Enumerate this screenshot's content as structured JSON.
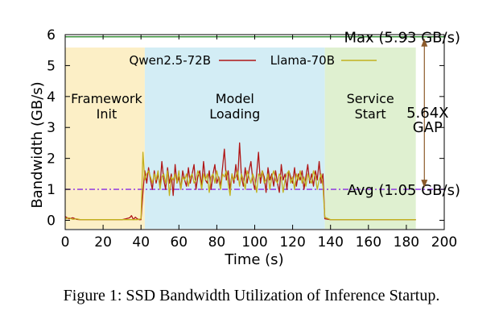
{
  "caption": "Figure 1: SSD Bandwidth Utilization of Inference Startup.",
  "chart_data": {
    "type": "line",
    "xlabel": "Time (s)",
    "ylabel": "Bandwidth (GB/s)",
    "xlim": [
      0,
      200
    ],
    "ylim": [
      -0.3,
      6
    ],
    "xticks": [
      0,
      20,
      40,
      60,
      80,
      100,
      120,
      140,
      160,
      180,
      200
    ],
    "yticks": [
      0,
      1,
      2,
      3,
      4,
      5,
      6
    ],
    "legend_placement": "top",
    "phases": [
      {
        "label_lines": [
          "Framework",
          "Init"
        ],
        "start": 0,
        "end": 42,
        "color": "#fcefc6"
      },
      {
        "label_lines": [
          "Model",
          "Loading"
        ],
        "start": 42,
        "end": 137,
        "color": "#d3edf5"
      },
      {
        "label_lines": [
          "Service",
          "Start"
        ],
        "start": 137,
        "end": 185,
        "color": "#dff0d0"
      }
    ],
    "reference_lines": [
      {
        "label": "Max (5.93 GB/s)",
        "y": 5.93,
        "color": "#2e8b2e",
        "style": "solid"
      },
      {
        "label": "Avg (1.05 GB/s)",
        "y": 1.0,
        "color": "#8a2be2",
        "style": "dashdot"
      }
    ],
    "gap_annotation": {
      "lines": [
        "5.64X",
        "GAP"
      ],
      "x": 198,
      "y_from": 1.0,
      "y_to": 5.93,
      "color": "#8b5a2b"
    },
    "series": [
      {
        "name": "Qwen2.5-72B",
        "color": "#b01717",
        "x": [
          0,
          2,
          4,
          6,
          8,
          10,
          12,
          14,
          16,
          18,
          20,
          22,
          24,
          26,
          28,
          30,
          32,
          34,
          35,
          36,
          37,
          38,
          39,
          40,
          41,
          42,
          43,
          44,
          45,
          46,
          47,
          48,
          49,
          50,
          51,
          52,
          53,
          54,
          55,
          56,
          57,
          58,
          59,
          60,
          61,
          62,
          63,
          64,
          65,
          66,
          67,
          68,
          69,
          70,
          71,
          72,
          73,
          74,
          75,
          76,
          77,
          78,
          79,
          80,
          81,
          82,
          83,
          84,
          85,
          86,
          87,
          88,
          89,
          90,
          91,
          92,
          93,
          94,
          95,
          96,
          97,
          98,
          99,
          100,
          101,
          102,
          103,
          104,
          105,
          106,
          107,
          108,
          109,
          110,
          111,
          112,
          113,
          114,
          115,
          116,
          117,
          118,
          119,
          120,
          121,
          122,
          123,
          124,
          125,
          126,
          127,
          128,
          129,
          130,
          131,
          132,
          133,
          134,
          135,
          136,
          137,
          140,
          150,
          160,
          170,
          180,
          185
        ],
        "values": [
          0.12,
          0.05,
          0.08,
          0.03,
          0.02,
          0.02,
          0.02,
          0.02,
          0.02,
          0.02,
          0.02,
          0.02,
          0.02,
          0.02,
          0.02,
          0.02,
          0.05,
          0.08,
          0.15,
          0.02,
          0.1,
          0.05,
          0.02,
          0.02,
          0.9,
          1.6,
          1.2,
          1.7,
          1.3,
          1.0,
          1.6,
          1.2,
          1.5,
          1.1,
          1.9,
          1.3,
          1.0,
          1.7,
          1.2,
          1.5,
          0.8,
          1.8,
          1.2,
          1.4,
          1.0,
          1.6,
          1.3,
          1.1,
          1.7,
          1.2,
          1.5,
          1.8,
          1.0,
          1.4,
          1.6,
          1.1,
          1.9,
          1.3,
          1.2,
          1.6,
          1.0,
          1.5,
          1.8,
          1.2,
          1.4,
          1.1,
          1.7,
          2.3,
          1.3,
          1.6,
          1.0,
          1.5,
          1.2,
          1.8,
          1.3,
          2.5,
          1.4,
          1.1,
          1.7,
          1.2,
          1.6,
          1.9,
          1.3,
          1.0,
          1.5,
          2.2,
          1.2,
          1.6,
          1.4,
          0.9,
          1.7,
          1.3,
          1.5,
          1.1,
          1.6,
          1.2,
          0.9,
          1.8,
          1.3,
          1.5,
          1.0,
          1.6,
          1.4,
          1.2,
          1.7,
          1.1,
          1.5,
          1.3,
          1.6,
          1.0,
          1.4,
          1.8,
          1.2,
          1.5,
          1.1,
          1.6,
          1.3,
          1.9,
          1.2,
          1.5,
          0.05,
          0.02,
          0.02,
          0.02,
          0.02,
          0.02,
          0.02
        ]
      },
      {
        "name": "Llama-70B",
        "color": "#c2b11f",
        "x": [
          0,
          2,
          4,
          6,
          8,
          10,
          12,
          14,
          16,
          18,
          20,
          22,
          24,
          26,
          28,
          30,
          32,
          34,
          36,
          38,
          40,
          41,
          42,
          43,
          44,
          45,
          46,
          47,
          48,
          49,
          50,
          51,
          52,
          53,
          54,
          55,
          56,
          57,
          58,
          59,
          60,
          61,
          62,
          63,
          64,
          65,
          66,
          67,
          68,
          69,
          70,
          71,
          72,
          73,
          74,
          75,
          76,
          77,
          78,
          79,
          80,
          81,
          82,
          83,
          84,
          85,
          86,
          87,
          88,
          89,
          90,
          91,
          92,
          93,
          94,
          95,
          96,
          97,
          98,
          99,
          100,
          101,
          102,
          103,
          104,
          105,
          106,
          107,
          108,
          109,
          110,
          111,
          112,
          113,
          114,
          115,
          116,
          117,
          118,
          119,
          120,
          121,
          122,
          123,
          124,
          125,
          126,
          127,
          128,
          129,
          130,
          131,
          132,
          133,
          134,
          135,
          136,
          137,
          140,
          150,
          160,
          170,
          180,
          185
        ],
        "values": [
          0.05,
          0.08,
          0.03,
          0.05,
          0.02,
          0.02,
          0.02,
          0.02,
          0.02,
          0.02,
          0.02,
          0.02,
          0.02,
          0.02,
          0.02,
          0.02,
          0.02,
          0.02,
          0.02,
          0.02,
          0.05,
          2.2,
          1.3,
          1.5,
          1.6,
          1.4,
          1.2,
          1.5,
          1.3,
          1.6,
          1.0,
          1.4,
          1.5,
          1.2,
          1.6,
          0.8,
          1.4,
          1.3,
          1.5,
          1.2,
          1.6,
          1.0,
          1.4,
          1.3,
          1.5,
          1.1,
          1.4,
          1.5,
          1.2,
          1.3,
          1.6,
          1.4,
          1.0,
          1.5,
          1.3,
          1.5,
          0.9,
          1.4,
          1.5,
          1.2,
          1.6,
          1.3,
          1.0,
          1.5,
          1.4,
          1.6,
          1.2,
          0.8,
          1.5,
          1.3,
          1.4,
          1.6,
          1.1,
          1.5,
          1.3,
          1.0,
          1.6,
          1.4,
          1.2,
          1.5,
          1.3,
          0.9,
          1.5,
          1.4,
          1.6,
          1.2,
          1.3,
          1.5,
          1.0,
          1.4,
          1.6,
          1.3,
          1.2,
          1.5,
          1.4,
          0.9,
          1.3,
          1.5,
          1.6,
          1.2,
          1.4,
          1.0,
          1.5,
          1.3,
          1.6,
          1.2,
          1.4,
          1.1,
          1.5,
          1.3,
          1.2,
          1.6,
          1.4,
          1.0,
          1.3,
          1.5,
          1.1,
          0.1,
          0.02,
          0.02,
          0.02,
          0.02,
          0.02,
          0.02
        ]
      }
    ]
  }
}
